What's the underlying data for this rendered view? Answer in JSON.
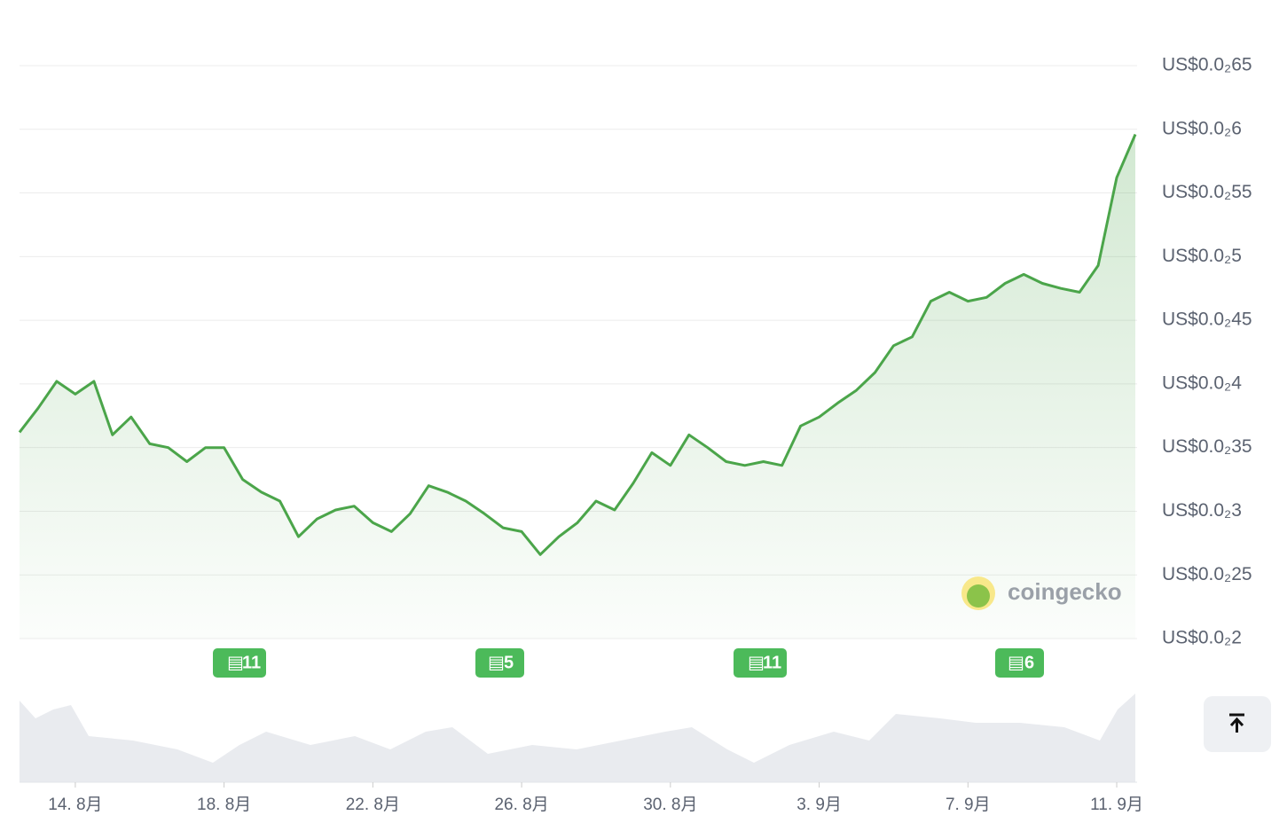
{
  "chart_data": {
    "type": "line",
    "x": [
      0,
      1,
      2,
      3,
      4,
      5,
      6,
      7,
      8,
      9,
      10,
      11,
      12,
      13,
      14,
      15,
      16,
      17,
      18,
      19,
      20,
      21,
      22,
      23,
      24,
      25,
      26,
      27,
      28,
      29,
      30,
      31,
      32,
      33,
      34,
      35,
      36,
      37,
      38,
      39,
      40,
      41,
      42,
      43,
      44,
      45,
      46,
      47,
      48,
      49,
      50,
      51,
      52,
      53,
      54,
      55,
      56,
      57,
      58,
      59,
      60
    ],
    "values": [
      0.00362,
      0.00381,
      0.00402,
      0.00392,
      0.00402,
      0.0036,
      0.00374,
      0.00353,
      0.0035,
      0.00339,
      0.0035,
      0.0035,
      0.00325,
      0.00315,
      0.00308,
      0.0028,
      0.00294,
      0.00301,
      0.00304,
      0.00291,
      0.00284,
      0.00298,
      0.0032,
      0.00315,
      0.00308,
      0.00298,
      0.00287,
      0.00284,
      0.00266,
      0.0028,
      0.00291,
      0.00308,
      0.00301,
      0.00322,
      0.00346,
      0.00336,
      0.0036,
      0.0035,
      0.00339,
      0.00336,
      0.00339,
      0.00336,
      0.00367,
      0.00374,
      0.00385,
      0.00395,
      0.00409,
      0.0043,
      0.00437,
      0.00465,
      0.00472,
      0.00465,
      0.00468,
      0.00479,
      0.00486,
      0.00479,
      0.00475,
      0.00472,
      0.00493,
      0.00562,
      0.00596
    ],
    "color": "#4ba54a",
    "xlim": [
      0,
      60
    ],
    "xticks": [
      {
        "value": 3,
        "label": "14. 8月"
      },
      {
        "value": 11,
        "label": "18. 8月"
      },
      {
        "value": 19,
        "label": "22. 8月"
      },
      {
        "value": 27,
        "label": "26. 8月"
      },
      {
        "value": 35,
        "label": "30. 8月"
      },
      {
        "value": 43,
        "label": "3. 9月"
      },
      {
        "value": 51,
        "label": "7. 9月"
      },
      {
        "value": 59,
        "label": "11. 9月"
      }
    ],
    "ylim": [
      0.002,
      0.0065
    ],
    "yticks": [
      {
        "value": 0.002,
        "label": "US$0.0₂2"
      },
      {
        "value": 0.0025,
        "label": "US$0.0₂25"
      },
      {
        "value": 0.003,
        "label": "US$0.0₂3"
      },
      {
        "value": 0.0035,
        "label": "US$0.0₂35"
      },
      {
        "value": 0.004,
        "label": "US$0.0₂4"
      },
      {
        "value": 0.0045,
        "label": "US$0.0₂45"
      },
      {
        "value": 0.005,
        "label": "US$0.0₂5"
      },
      {
        "value": 0.0055,
        "label": "US$0.0₂55"
      },
      {
        "value": 0.006,
        "label": "US$0.0₂6"
      },
      {
        "value": 0.0065,
        "label": "US$0.0₂65"
      }
    ],
    "grid": true,
    "news": [
      "11",
      "5",
      "11",
      "6"
    ],
    "watermark": "coingecko"
  }
}
